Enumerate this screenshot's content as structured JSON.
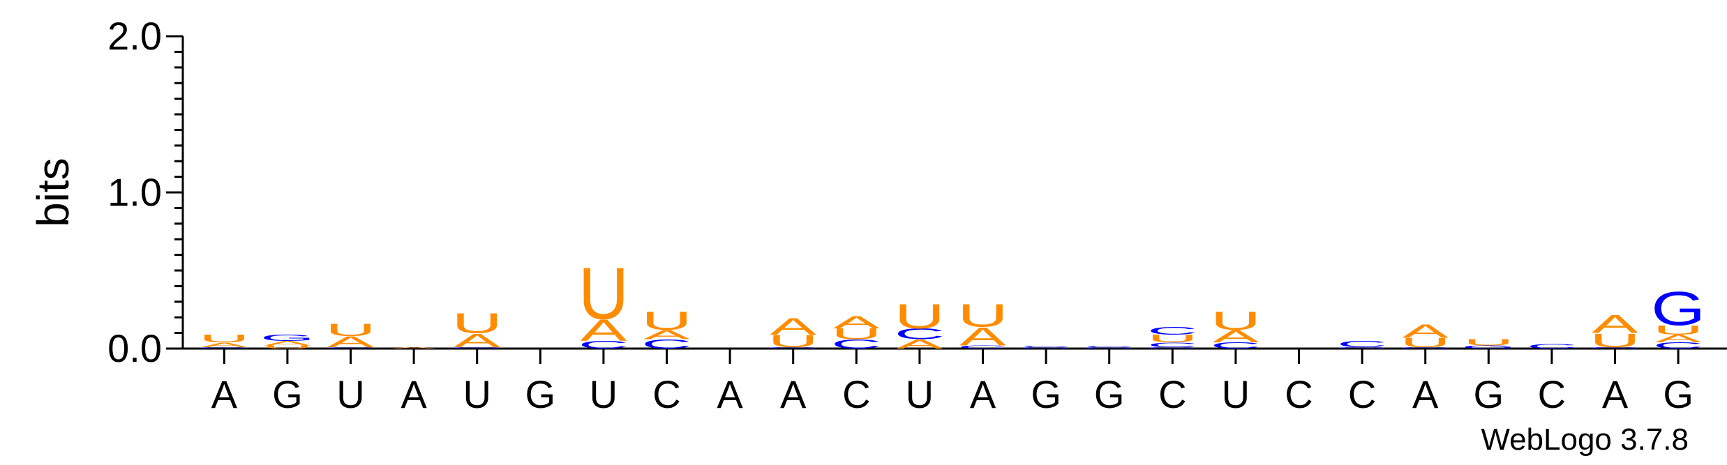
{
  "credit": "WebLogo 3.7.8",
  "colors": {
    "A": "#ff8c00",
    "U": "#ff8c00",
    "C": "#0000ff",
    "G": "#0000ff"
  },
  "chart_data": {
    "type": "sequence-logo",
    "ylabel": "bits",
    "ylim": [
      0,
      2.0
    ],
    "yticks": [
      "0.0",
      "1.0",
      "2.0"
    ],
    "sequence": [
      "A",
      "G",
      "U",
      "A",
      "U",
      "G",
      "U",
      "C",
      "A",
      "A",
      "C",
      "U",
      "A",
      "G",
      "G",
      "C",
      "U",
      "C",
      "C",
      "A",
      "G",
      "C",
      "A",
      "G"
    ],
    "columns": [
      {
        "pos": "A",
        "stack": [
          [
            "G",
            0.01
          ],
          [
            "A",
            0.03
          ],
          [
            "U",
            0.05
          ]
        ]
      },
      {
        "pos": "G",
        "stack": [
          [
            "U",
            0.02
          ],
          [
            "A",
            0.03
          ],
          [
            "G",
            0.04
          ]
        ]
      },
      {
        "pos": "U",
        "stack": [
          [
            "C",
            0.01
          ],
          [
            "A",
            0.07
          ],
          [
            "U",
            0.08
          ]
        ]
      },
      {
        "pos": "A",
        "stack": [
          [
            "A",
            0.01
          ]
        ]
      },
      {
        "pos": "U",
        "stack": [
          [
            "G",
            0.01
          ],
          [
            "A",
            0.09
          ],
          [
            "U",
            0.13
          ]
        ]
      },
      {
        "pos": "G",
        "stack": []
      },
      {
        "pos": "U",
        "stack": [
          [
            "C",
            0.05
          ],
          [
            "A",
            0.14
          ],
          [
            "U",
            0.34
          ]
        ]
      },
      {
        "pos": "C",
        "stack": [
          [
            "C",
            0.06
          ],
          [
            "A",
            0.06
          ],
          [
            "U",
            0.12
          ]
        ]
      },
      {
        "pos": "A",
        "stack": []
      },
      {
        "pos": "A",
        "stack": [
          [
            "G",
            0.01
          ],
          [
            "U",
            0.08
          ],
          [
            "A",
            0.11
          ]
        ]
      },
      {
        "pos": "C",
        "stack": [
          [
            "C",
            0.06
          ],
          [
            "U",
            0.07
          ],
          [
            "A",
            0.08
          ]
        ]
      },
      {
        "pos": "U",
        "stack": [
          [
            "A",
            0.06
          ],
          [
            "C",
            0.07
          ],
          [
            "U",
            0.16
          ]
        ]
      },
      {
        "pos": "A",
        "stack": [
          [
            "C",
            0.02
          ],
          [
            "A",
            0.12
          ],
          [
            "U",
            0.15
          ]
        ]
      },
      {
        "pos": "G",
        "stack": [
          [
            "G",
            0.01
          ],
          [
            "C",
            0.01
          ]
        ]
      },
      {
        "pos": "G",
        "stack": [
          [
            "G",
            0.01
          ],
          [
            "C",
            0.01
          ]
        ]
      },
      {
        "pos": "C",
        "stack": [
          [
            "G",
            0.01
          ],
          [
            "C",
            0.03
          ],
          [
            "U",
            0.05
          ],
          [
            "C",
            0.05
          ]
        ]
      },
      {
        "pos": "U",
        "stack": [
          [
            "C",
            0.04
          ],
          [
            "A",
            0.08
          ],
          [
            "U",
            0.12
          ]
        ]
      },
      {
        "pos": "C",
        "stack": []
      },
      {
        "pos": "C",
        "stack": [
          [
            "G",
            0.01
          ],
          [
            "C",
            0.04
          ]
        ]
      },
      {
        "pos": "A",
        "stack": [
          [
            "G",
            0.01
          ],
          [
            "U",
            0.06
          ],
          [
            "A",
            0.09
          ]
        ]
      },
      {
        "pos": "G",
        "stack": [
          [
            "G",
            0.02
          ],
          [
            "U",
            0.04
          ]
        ]
      },
      {
        "pos": "C",
        "stack": [
          [
            "C",
            0.03
          ]
        ]
      },
      {
        "pos": "A",
        "stack": [
          [
            "G",
            0.01
          ],
          [
            "U",
            0.09
          ],
          [
            "A",
            0.12
          ]
        ]
      },
      {
        "pos": "G",
        "stack": [
          [
            "C",
            0.04
          ],
          [
            "A",
            0.05
          ],
          [
            "U",
            0.06
          ],
          [
            "G",
            0.22
          ]
        ]
      }
    ]
  }
}
